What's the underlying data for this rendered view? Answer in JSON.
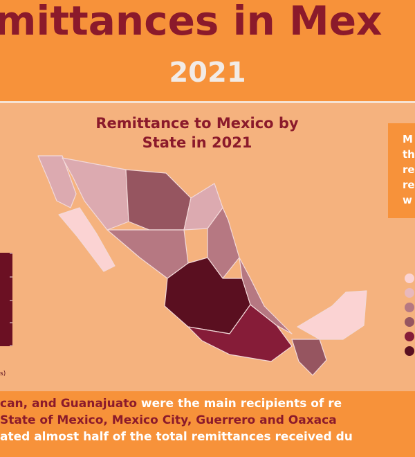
{
  "header": {
    "title": "mittances in Mex",
    "year": "2021"
  },
  "map": {
    "title_lines": [
      "Remittance to Mexico by",
      "State in 2021"
    ]
  },
  "note": {
    "lines": [
      "M",
      "th",
      "re",
      "re",
      "w"
    ]
  },
  "scale": {
    "unit": "s)"
  },
  "footer": {
    "lines": [
      [
        "can, and Guanajuato",
        " were the main recipients of re"
      ],
      [
        "State of Mexico, Mexico City, Guerrero and Oaxaca"
      ],
      [
        "ated almost half of the total remittances received du"
      ]
    ]
  }
}
